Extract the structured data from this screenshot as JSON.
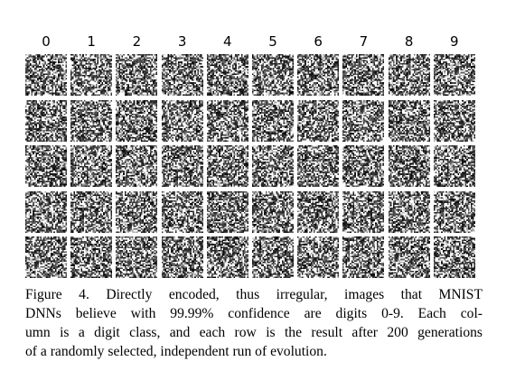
{
  "figure": {
    "column_labels": [
      "0",
      "1",
      "2",
      "3",
      "4",
      "5",
      "6",
      "7",
      "8",
      "9"
    ],
    "rows": 5,
    "caption_lines": [
      "Figure 4. Directly encoded, thus irregular, images that MNIST",
      "DNNs believe with 99.99% confidence are digits 0-9. Each col-",
      "umn is a digit class, and each row is the result after 200 generations",
      "of a randomly selected, independent run of evolution."
    ]
  }
}
